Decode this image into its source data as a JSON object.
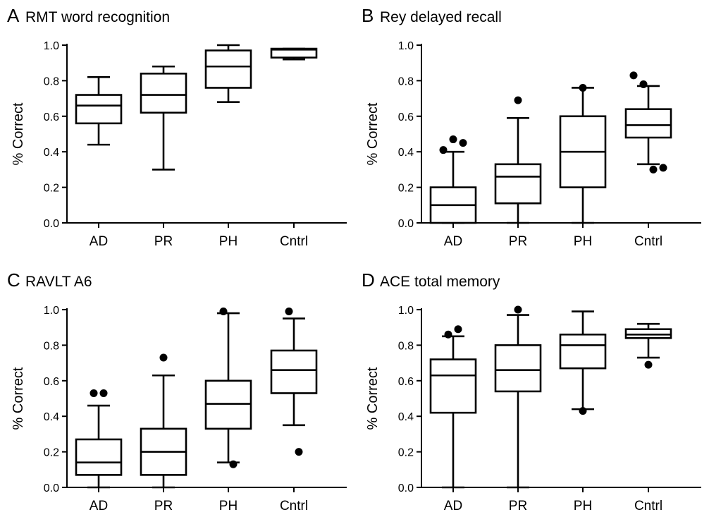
{
  "chart_data": [
    {
      "panel": "A",
      "type": "box",
      "title": "RMT word recognition",
      "ylabel": "% Correct",
      "xlabel": "",
      "ylim": [
        0,
        1.0
      ],
      "yticks": [
        "0.0",
        "0.2",
        "0.4",
        "0.6",
        "0.8",
        "1.0"
      ],
      "categories": [
        "AD",
        "PR",
        "PH",
        "Cntrl"
      ],
      "boxes": [
        {
          "min": 0.44,
          "q1": 0.56,
          "median": 0.66,
          "q3": 0.72,
          "max": 0.82,
          "outliers": []
        },
        {
          "min": 0.3,
          "q1": 0.62,
          "median": 0.72,
          "q3": 0.84,
          "max": 0.88,
          "outliers": []
        },
        {
          "min": 0.68,
          "q1": 0.76,
          "median": 0.88,
          "q3": 0.97,
          "max": 1.0,
          "outliers": []
        },
        {
          "min": 0.92,
          "q1": 0.93,
          "median": 0.975,
          "q3": 0.98,
          "max": 0.98,
          "outliers": []
        }
      ]
    },
    {
      "panel": "B",
      "type": "box",
      "title": "Rey delayed recall",
      "ylabel": "% Correct",
      "xlabel": "",
      "ylim": [
        0,
        1.0
      ],
      "yticks": [
        "0.0",
        "0.2",
        "0.4",
        "0.6",
        "0.8",
        "1.0"
      ],
      "categories": [
        "AD",
        "PR",
        "PH",
        "Cntrl"
      ],
      "boxes": [
        {
          "min": 0.0,
          "q1": 0.0,
          "median": 0.1,
          "q3": 0.2,
          "max": 0.4,
          "outliers": [
            0.41,
            0.47,
            0.45
          ]
        },
        {
          "min": 0.0,
          "q1": 0.11,
          "median": 0.26,
          "q3": 0.33,
          "max": 0.59,
          "outliers": [
            0.69
          ]
        },
        {
          "min": 0.0,
          "q1": 0.2,
          "median": 0.4,
          "q3": 0.6,
          "max": 0.76,
          "outliers": [
            0.76
          ]
        },
        {
          "min": 0.33,
          "q1": 0.48,
          "median": 0.55,
          "q3": 0.64,
          "max": 0.77,
          "outliers": [
            0.83,
            0.78,
            0.3,
            0.31
          ]
        }
      ]
    },
    {
      "panel": "C",
      "type": "box",
      "title": "RAVLT A6",
      "ylabel": "% Correct",
      "xlabel": "",
      "ylim": [
        0,
        1.0
      ],
      "yticks": [
        "0.0",
        "0.2",
        "0.4",
        "0.6",
        "0.8",
        "1.0"
      ],
      "categories": [
        "AD",
        "PR",
        "PH",
        "Cntrl"
      ],
      "boxes": [
        {
          "min": 0.0,
          "q1": 0.07,
          "median": 0.14,
          "q3": 0.27,
          "max": 0.46,
          "outliers": [
            0.53,
            0.53
          ]
        },
        {
          "min": 0.0,
          "q1": 0.07,
          "median": 0.2,
          "q3": 0.33,
          "max": 0.63,
          "outliers": [
            0.73
          ]
        },
        {
          "min": 0.14,
          "q1": 0.33,
          "median": 0.47,
          "q3": 0.6,
          "max": 0.98,
          "outliers": [
            0.99,
            0.13
          ]
        },
        {
          "min": 0.35,
          "q1": 0.53,
          "median": 0.66,
          "q3": 0.77,
          "max": 0.95,
          "outliers": [
            0.99,
            0.2
          ]
        }
      ]
    },
    {
      "panel": "D",
      "type": "box",
      "title": "ACE total memory",
      "ylabel": "% Correct",
      "xlabel": "",
      "ylim": [
        0,
        1.0
      ],
      "yticks": [
        "0.0",
        "0.2",
        "0.4",
        "0.6",
        "0.8",
        "1.0"
      ],
      "categories": [
        "AD",
        "PR",
        "PH",
        "Cntrl"
      ],
      "boxes": [
        {
          "min": 0.0,
          "q1": 0.42,
          "median": 0.63,
          "q3": 0.72,
          "max": 0.85,
          "outliers": [
            0.86,
            0.89
          ]
        },
        {
          "min": 0.0,
          "q1": 0.54,
          "median": 0.66,
          "q3": 0.8,
          "max": 0.97,
          "outliers": [
            1.0
          ]
        },
        {
          "min": 0.44,
          "q1": 0.67,
          "median": 0.8,
          "q3": 0.86,
          "max": 0.99,
          "outliers": [
            0.43
          ]
        },
        {
          "min": 0.73,
          "q1": 0.84,
          "median": 0.86,
          "q3": 0.89,
          "max": 0.92,
          "outliers": [
            0.69
          ]
        }
      ]
    }
  ]
}
